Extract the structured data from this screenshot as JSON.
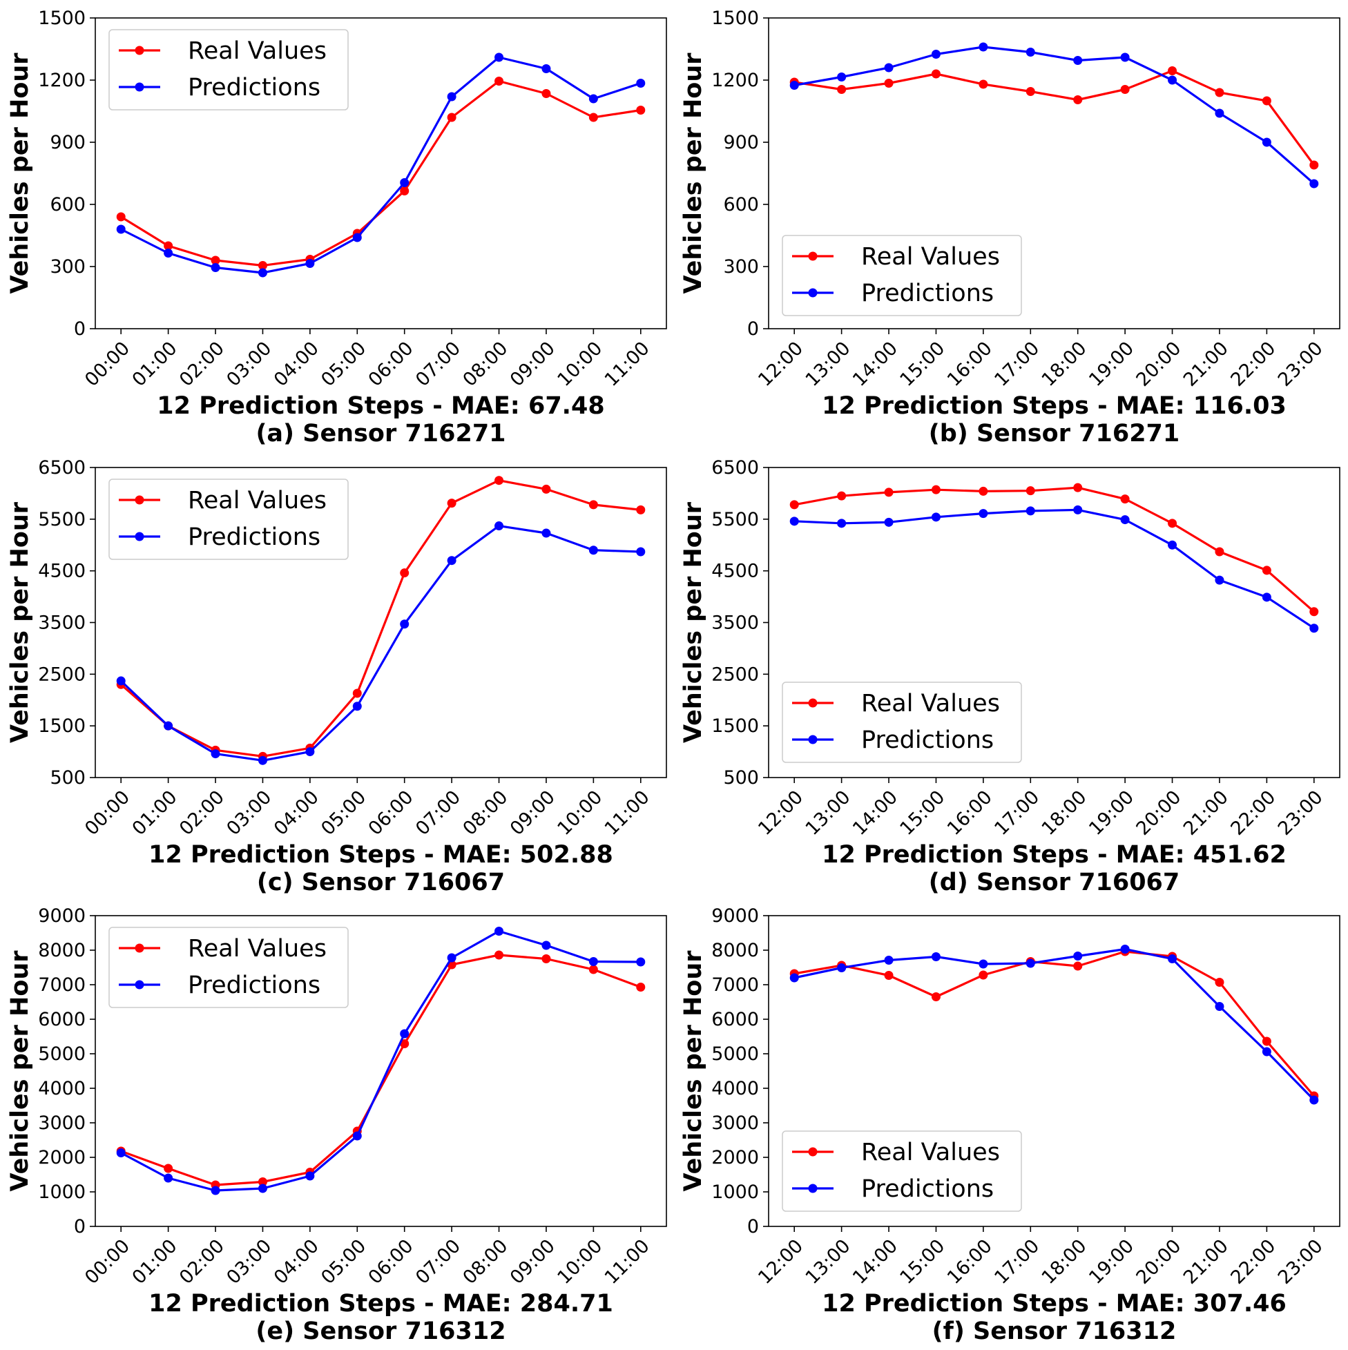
{
  "colors": {
    "real": "#ff0000",
    "pred": "#0000ff"
  },
  "chart_data": [
    {
      "type": "line",
      "x": [
        "00:00",
        "01:00",
        "02:00",
        "03:00",
        "04:00",
        "05:00",
        "06:00",
        "07:00",
        "08:00",
        "09:00",
        "10:00",
        "11:00"
      ],
      "series": [
        {
          "name": "Real Values",
          "values": [
            540,
            400,
            330,
            305,
            335,
            460,
            665,
            1020,
            1195,
            1135,
            1020,
            1055
          ]
        },
        {
          "name": "Predictions",
          "values": [
            480,
            365,
            295,
            270,
            315,
            440,
            705,
            1120,
            1310,
            1255,
            1110,
            1185
          ]
        }
      ],
      "ylim": [
        0,
        1500
      ],
      "yticks": [
        0,
        300,
        600,
        900,
        1200,
        1500
      ],
      "ylabel": "Vehicles per Hour",
      "xlabel": "12 Prediction Steps - MAE: 67.48",
      "caption": "(a) Sensor 716271",
      "legend": "upper-left"
    },
    {
      "type": "line",
      "x": [
        "12:00",
        "13:00",
        "14:00",
        "15:00",
        "16:00",
        "17:00",
        "18:00",
        "19:00",
        "20:00",
        "21:00",
        "22:00",
        "23:00"
      ],
      "series": [
        {
          "name": "Real Values",
          "values": [
            1190,
            1155,
            1185,
            1230,
            1180,
            1145,
            1105,
            1155,
            1245,
            1140,
            1100,
            790
          ]
        },
        {
          "name": "Predictions",
          "values": [
            1175,
            1215,
            1260,
            1325,
            1360,
            1335,
            1295,
            1310,
            1200,
            1040,
            900,
            700
          ]
        }
      ],
      "ylim": [
        0,
        1500
      ],
      "yticks": [
        0,
        300,
        600,
        900,
        1200,
        1500
      ],
      "ylabel": "Vehicles per Hour",
      "xlabel": "12 Prediction Steps - MAE: 116.03",
      "caption": "(b) Sensor 716271",
      "legend": "center-left"
    },
    {
      "type": "line",
      "x": [
        "00:00",
        "01:00",
        "02:00",
        "03:00",
        "04:00",
        "05:00",
        "06:00",
        "07:00",
        "08:00",
        "09:00",
        "10:00",
        "11:00"
      ],
      "series": [
        {
          "name": "Real Values",
          "values": [
            2300,
            1500,
            1030,
            910,
            1070,
            2130,
            4460,
            5810,
            6250,
            6080,
            5780,
            5680
          ]
        },
        {
          "name": "Predictions",
          "values": [
            2370,
            1500,
            960,
            830,
            1000,
            1880,
            3470,
            4700,
            5370,
            5230,
            4900,
            4870
          ]
        }
      ],
      "ylim": [
        500,
        6500
      ],
      "yticks": [
        500,
        1500,
        2500,
        3500,
        4500,
        5500,
        6500
      ],
      "ylabel": "Vehicles per Hour",
      "xlabel": "12 Prediction Steps - MAE: 502.88",
      "caption": "(c) Sensor 716067",
      "legend": "upper-left"
    },
    {
      "type": "line",
      "x": [
        "12:00",
        "13:00",
        "14:00",
        "15:00",
        "16:00",
        "17:00",
        "18:00",
        "19:00",
        "20:00",
        "21:00",
        "22:00",
        "23:00"
      ],
      "series": [
        {
          "name": "Real Values",
          "values": [
            5780,
            5950,
            6020,
            6070,
            6040,
            6050,
            6110,
            5890,
            5420,
            4870,
            4510,
            3710
          ]
        },
        {
          "name": "Predictions",
          "values": [
            5460,
            5420,
            5440,
            5540,
            5610,
            5660,
            5680,
            5490,
            5000,
            4320,
            3990,
            3390
          ]
        }
      ],
      "ylim": [
        500,
        6500
      ],
      "yticks": [
        500,
        1500,
        2500,
        3500,
        4500,
        5500,
        6500
      ],
      "ylabel": "Vehicles per Hour",
      "xlabel": "12 Prediction Steps - MAE: 451.62",
      "caption": "(d) Sensor 716067",
      "legend": "lower-left"
    },
    {
      "type": "line",
      "x": [
        "00:00",
        "01:00",
        "02:00",
        "03:00",
        "04:00",
        "05:00",
        "06:00",
        "07:00",
        "08:00",
        "09:00",
        "10:00",
        "11:00"
      ],
      "series": [
        {
          "name": "Real Values",
          "values": [
            2180,
            1680,
            1200,
            1290,
            1570,
            2760,
            5290,
            7580,
            7860,
            7750,
            7440,
            6930
          ]
        },
        {
          "name": "Predictions",
          "values": [
            2130,
            1400,
            1040,
            1100,
            1460,
            2620,
            5580,
            7780,
            8550,
            8140,
            7670,
            7660
          ]
        }
      ],
      "ylim": [
        0,
        9000
      ],
      "yticks": [
        0,
        1000,
        2000,
        3000,
        4000,
        5000,
        6000,
        7000,
        8000,
        9000
      ],
      "ylabel": "Vehicles per Hour",
      "xlabel": "12 Prediction Steps - MAE: 284.71",
      "caption": "(e) Sensor 716312",
      "legend": "upper-left"
    },
    {
      "type": "line",
      "x": [
        "12:00",
        "13:00",
        "14:00",
        "15:00",
        "16:00",
        "17:00",
        "18:00",
        "19:00",
        "20:00",
        "21:00",
        "22:00",
        "23:00"
      ],
      "series": [
        {
          "name": "Real Values",
          "values": [
            7320,
            7560,
            7270,
            6650,
            7280,
            7670,
            7540,
            7960,
            7820,
            7070,
            5360,
            3780
          ]
        },
        {
          "name": "Predictions",
          "values": [
            7200,
            7490,
            7710,
            7810,
            7600,
            7620,
            7830,
            8030,
            7750,
            6370,
            5060,
            3660
          ]
        }
      ],
      "ylim": [
        0,
        9000
      ],
      "yticks": [
        0,
        1000,
        2000,
        3000,
        4000,
        5000,
        6000,
        7000,
        8000,
        9000
      ],
      "ylabel": "Vehicles per Hour",
      "xlabel": "12 Prediction Steps - MAE: 307.46",
      "caption": "(f) Sensor 716312",
      "legend": "lower-left"
    }
  ]
}
